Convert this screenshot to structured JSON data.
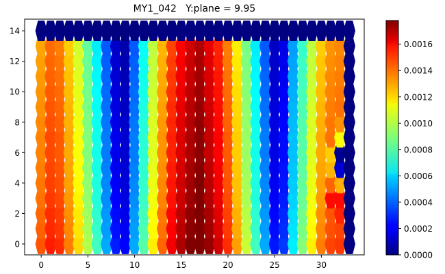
{
  "chart_data": {
    "type": "heatmap",
    "subtype": "hexagonal-grid",
    "title": "MY1_042   Y:plane = 9.95",
    "xlabel": "",
    "ylabel": "",
    "xlim": [
      -1.7,
      34.6
    ],
    "ylim": [
      -0.7,
      14.8
    ],
    "xticks": [
      0,
      5,
      10,
      15,
      20,
      25,
      30
    ],
    "xtick_labels": [
      "0",
      "5",
      "10",
      "15",
      "20",
      "25",
      "30"
    ],
    "yticks": [
      0,
      2,
      4,
      6,
      8,
      10,
      12,
      14
    ],
    "ytick_labels": [
      "0",
      "2",
      "4",
      "6",
      "8",
      "10",
      "12",
      "14"
    ],
    "colormap": "jet",
    "colorbar": {
      "vmin": 0.0,
      "vmax": 0.00178,
      "ticks": [
        0.0,
        0.0002,
        0.0004,
        0.0006,
        0.0008,
        0.001,
        0.0012,
        0.0014,
        0.0016
      ],
      "tick_labels": [
        "0.0000",
        "0.0002",
        "0.0004",
        "0.0006",
        "0.0008",
        "0.0010",
        "0.0012",
        "0.0014",
        "0.0016"
      ]
    },
    "grid": false,
    "n_columns": 34,
    "n_rows": 15,
    "value_scale": 0.0001,
    "column_profile_e4": [
      13.3,
      14.3,
      14.0,
      12.6,
      11.0,
      9.0,
      7.0,
      4.4,
      1.9,
      1.4,
      4.4,
      7.4,
      10.6,
      13.0,
      15.0,
      16.2,
      17.0,
      17.6,
      16.6,
      15.6,
      14.0,
      12.0,
      9.4,
      7.0,
      4.4,
      1.8,
      2.4,
      5.6,
      8.2,
      10.6,
      12.6,
      13.6,
      13.8,
      0.0
    ],
    "row_offset_e4": [
      0.8,
      0.6,
      0.5,
      0.3,
      0.2,
      0.1,
      0.0,
      0.0,
      -0.1,
      -0.2,
      -0.3,
      -0.4,
      -0.5,
      -0.6,
      0
    ],
    "top_row_value": 0.0,
    "anomalies_e4": [
      {
        "col": 32,
        "row": 7,
        "value": 11.0
      },
      {
        "col": 32,
        "row": 6,
        "value": 0.3
      },
      {
        "col": 32,
        "row": 5,
        "value": 1.5
      },
      {
        "col": 32,
        "row": 4,
        "value": 12.5
      },
      {
        "col": 31,
        "row": 6,
        "value": 12.0
      },
      {
        "col": 31,
        "row": 5,
        "value": 12.4
      },
      {
        "col": 32,
        "row": 3,
        "value": 15.4
      },
      {
        "col": 32,
        "row": 2,
        "value": 15.0
      },
      {
        "col": 31,
        "row": 3,
        "value": 15.4
      },
      {
        "col": 32,
        "row": 8,
        "value": 13.0
      },
      {
        "col": 32,
        "row": 9,
        "value": 13.6
      }
    ]
  }
}
